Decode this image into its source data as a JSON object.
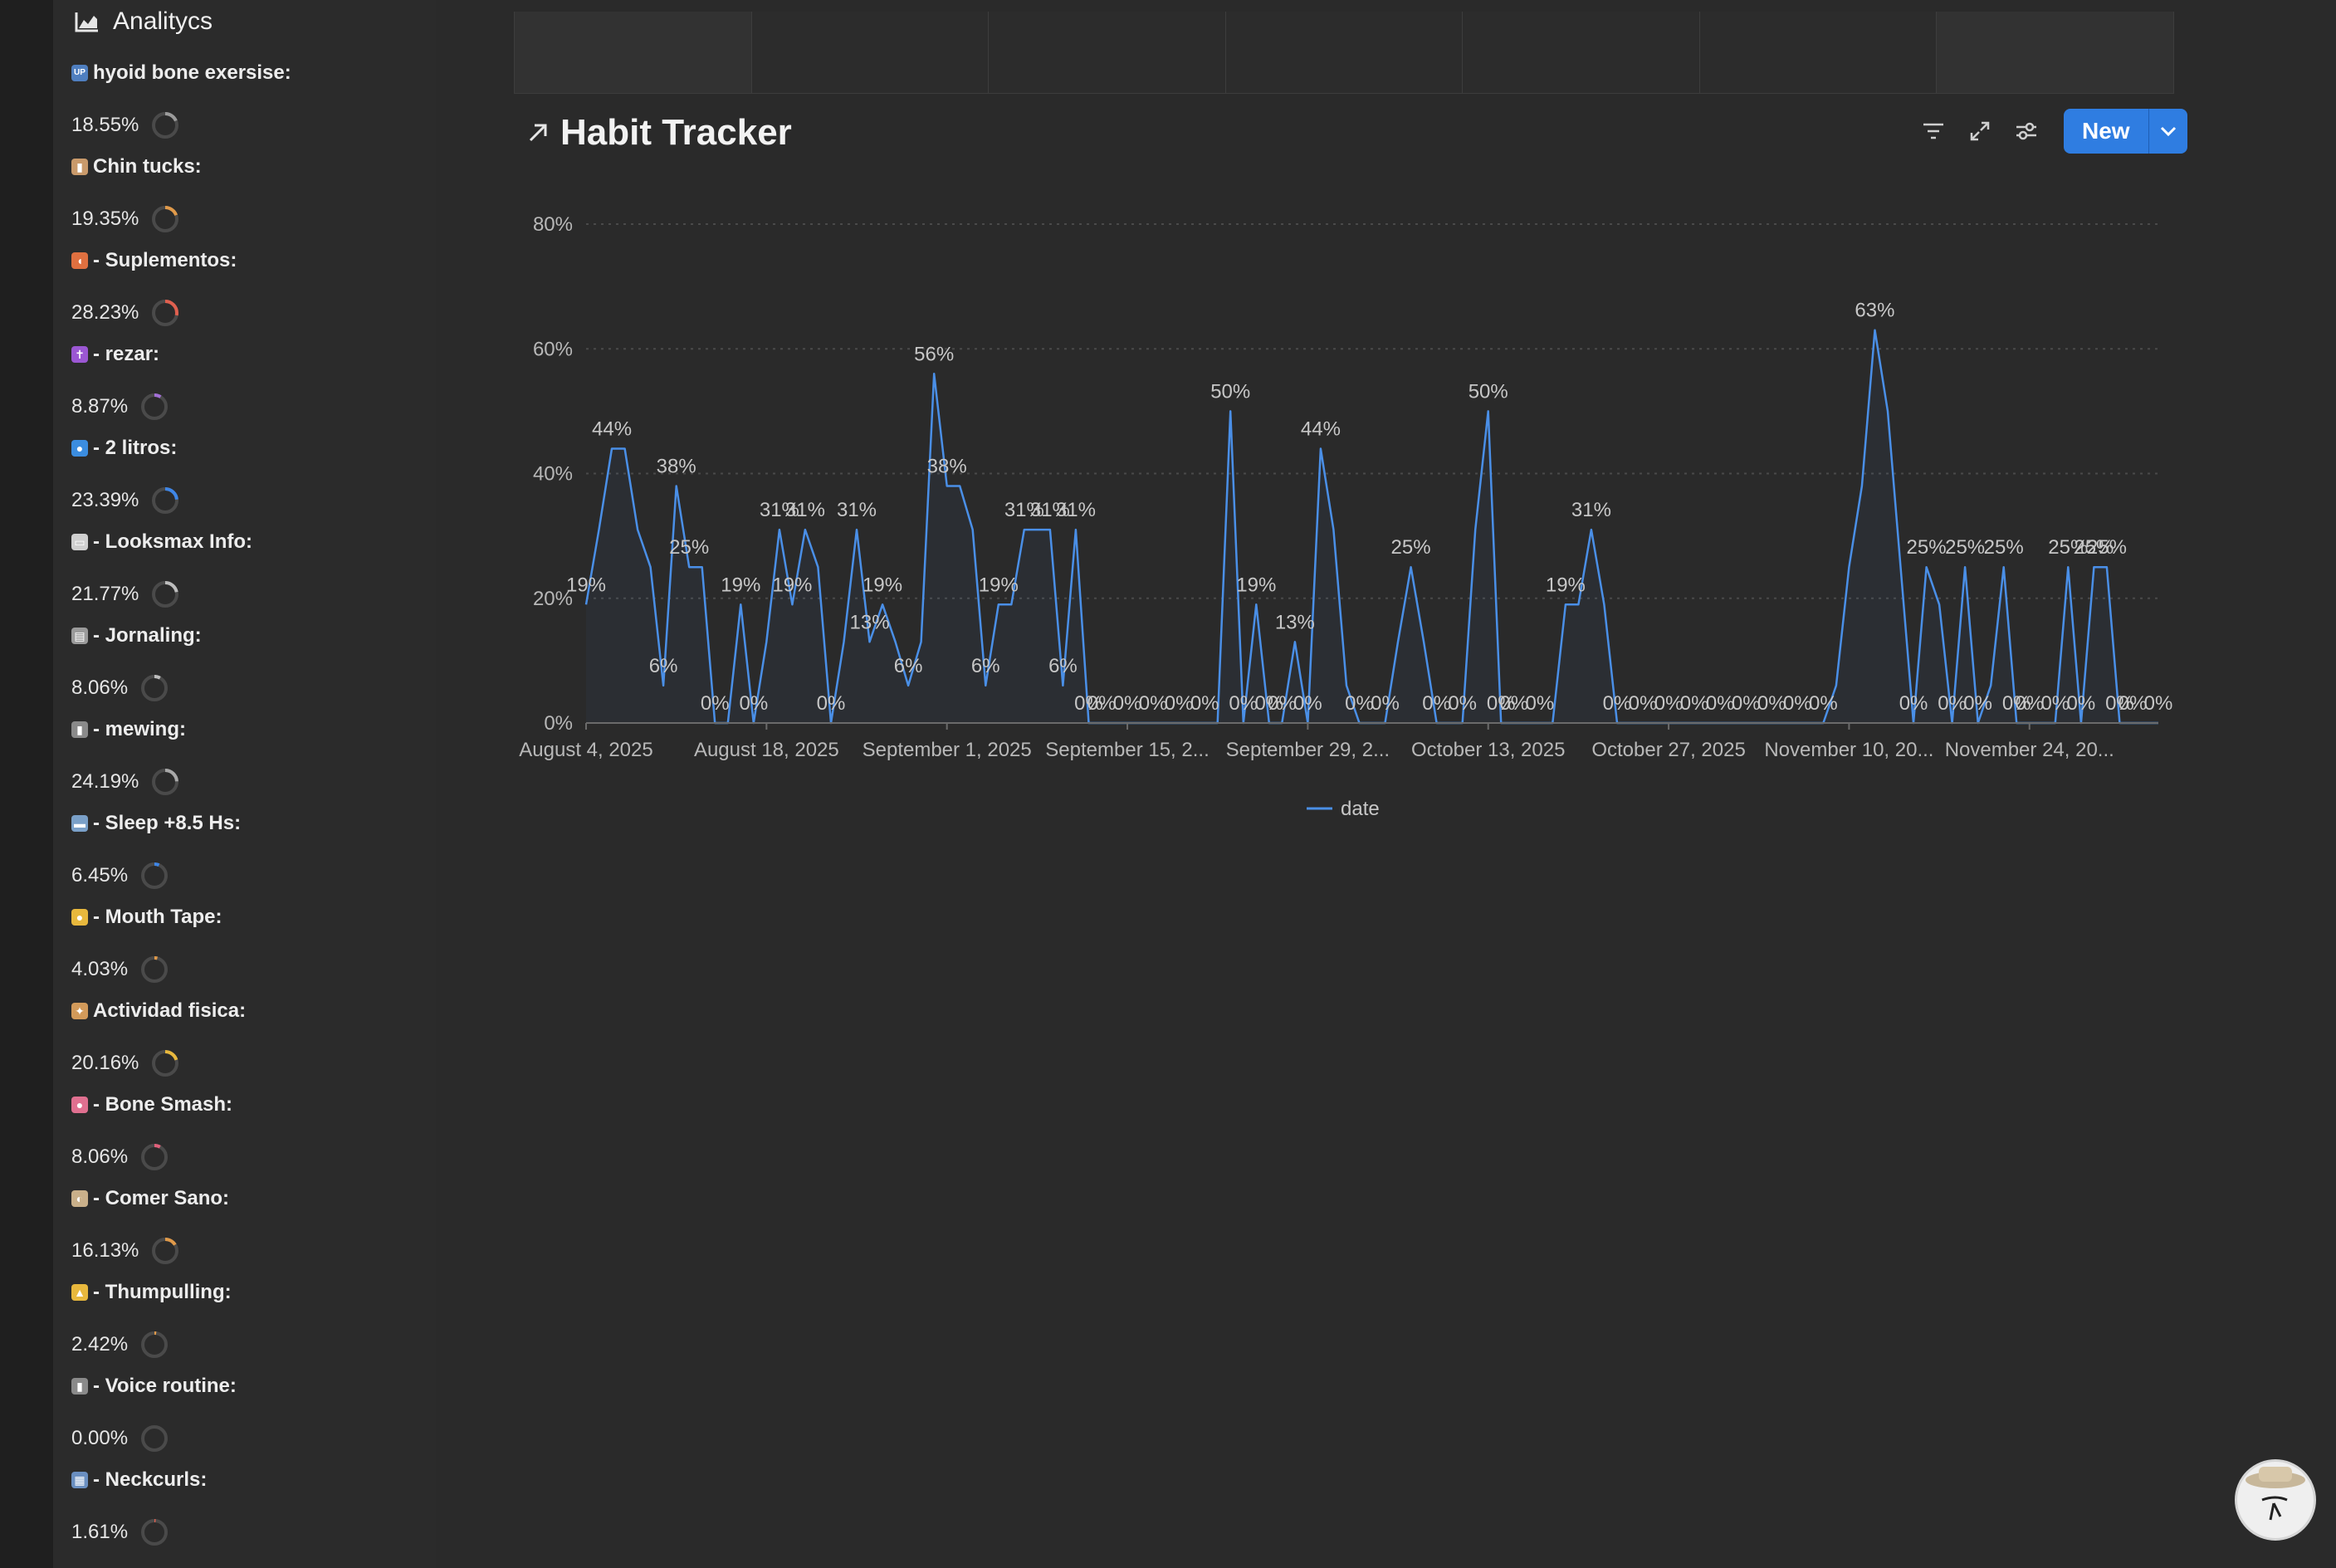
{
  "sidebar": {
    "title": "Analitycs",
    "items": [
      {
        "label": "hyoid bone exersise:",
        "value": "18.55%",
        "fraction": 0.1855,
        "color": "#9b9b9b",
        "emoji": "UP",
        "emoji_color": "#4f7fc0"
      },
      {
        "label": "Chin tucks:",
        "value": "19.35%",
        "fraction": 0.1935,
        "color": "#e09a4a",
        "emoji": "▮",
        "emoji_color": "#c99a6b"
      },
      {
        "label": "- Suplementos:",
        "value": "28.23%",
        "fraction": 0.2823,
        "color": "#e0604f",
        "emoji": "◖",
        "emoji_color": "#e07040"
      },
      {
        "label": "- rezar:",
        "value": "8.87%",
        "fraction": 0.0887,
        "color": "#a26fd6",
        "emoji": "✝",
        "emoji_color": "#9b57d3"
      },
      {
        "label": "- 2 litros:",
        "value": "23.39%",
        "fraction": 0.2339,
        "color": "#3f86e6",
        "emoji": "●",
        "emoji_color": "#3b8de0"
      },
      {
        "label": "- Looksmax Info:",
        "value": "21.77%",
        "fraction": 0.2177,
        "color": "#bdbdbd",
        "emoji": "▭",
        "emoji_color": "#cfcfcf"
      },
      {
        "label": "- Jornaling:",
        "value": "8.06%",
        "fraction": 0.0806,
        "color": "#bdbdbd",
        "emoji": "▤",
        "emoji_color": "#9a9a9a"
      },
      {
        "label": "- mewing:",
        "value": "24.19%",
        "fraction": 0.2419,
        "color": "#a8a8a8",
        "emoji": "▮",
        "emoji_color": "#8a8a8a"
      },
      {
        "label": "- Sleep +8.5 Hs:",
        "value": "6.45%",
        "fraction": 0.0645,
        "color": "#3f86e6",
        "emoji": "▬",
        "emoji_color": "#7aa0c8"
      },
      {
        "label": "- Mouth Tape:",
        "value": "4.03%",
        "fraction": 0.0403,
        "color": "#e09a4a",
        "emoji": "●",
        "emoji_color": "#e8b83d"
      },
      {
        "label": "Actividad fisica:",
        "value": "20.16%",
        "fraction": 0.2016,
        "color": "#e8b83d",
        "emoji": "✦",
        "emoji_color": "#d29a5a"
      },
      {
        "label": "- Bone Smash:",
        "value": "8.06%",
        "fraction": 0.0806,
        "color": "#e0607a",
        "emoji": "●",
        "emoji_color": "#e07090"
      },
      {
        "label": "- Comer Sano:",
        "value": "16.13%",
        "fraction": 0.1613,
        "color": "#e09a4a",
        "emoji": "◐",
        "emoji_color": "#c9b08a"
      },
      {
        "label": "- Thumpulling:",
        "value": "2.42%",
        "fraction": 0.0242,
        "color": "#e09a4a",
        "emoji": "▲",
        "emoji_color": "#e8b83d"
      },
      {
        "label": "- Voice routine:",
        "value": "0.00%",
        "fraction": 0.0,
        "color": "#a8a8a8",
        "emoji": "▮",
        "emoji_color": "#8a8a8a"
      },
      {
        "label": "- Neckcurls:",
        "value": "1.61%",
        "fraction": 0.0161,
        "color": "#e0604f",
        "emoji": "▦",
        "emoji_color": "#6a8fc0"
      }
    ]
  },
  "main": {
    "title": "Habit Tracker",
    "new_button": "New",
    "icons": {
      "title": "arrow-up-right-icon",
      "filter": "filter-icon",
      "expand": "expand-icon",
      "settings": "sliders-icon",
      "caret": "chevron-down-icon"
    }
  },
  "chart_data": {
    "type": "line",
    "title": "",
    "xlabel": "",
    "ylabel": "",
    "ylim": [
      0,
      80
    ],
    "y_ticks": [
      "0%",
      "20%",
      "40%",
      "60%",
      "80%"
    ],
    "x_ticks": [
      "August 4, 2025",
      "August 18, 2025",
      "September 1, 2025",
      "September 15, 2...",
      "September 29, 2...",
      "October 13, 2025",
      "October 27, 2025",
      "November 10, 20...",
      "November 24, 20..."
    ],
    "legend": "date",
    "legend_position": "bottom",
    "grid": true,
    "series": [
      {
        "name": "date",
        "color": "#4a8fe7",
        "values": [
          19,
          31,
          44,
          44,
          31,
          25,
          6,
          38,
          25,
          25,
          0,
          0,
          19,
          0,
          13,
          31,
          19,
          31,
          25,
          0,
          13,
          31,
          13,
          19,
          13,
          6,
          13,
          56,
          38,
          38,
          31,
          6,
          19,
          19,
          31,
          31,
          31,
          6,
          31,
          0,
          0,
          0,
          0,
          0,
          0,
          0,
          0,
          0,
          0,
          0,
          50,
          0,
          19,
          0,
          0,
          13,
          0,
          44,
          31,
          6,
          0,
          0,
          0,
          13,
          25,
          13,
          0,
          0,
          0,
          31,
          50,
          0,
          0,
          0,
          0,
          0,
          19,
          19,
          31,
          19,
          0,
          0,
          0,
          0,
          0,
          0,
          0,
          0,
          0,
          0,
          0,
          0,
          0,
          0,
          0,
          0,
          0,
          6,
          25,
          38,
          63,
          50,
          25,
          0,
          25,
          19,
          0,
          25,
          0,
          6,
          25,
          0,
          0,
          0,
          0,
          25,
          0,
          25,
          25,
          0,
          0,
          0,
          0
        ]
      }
    ]
  }
}
